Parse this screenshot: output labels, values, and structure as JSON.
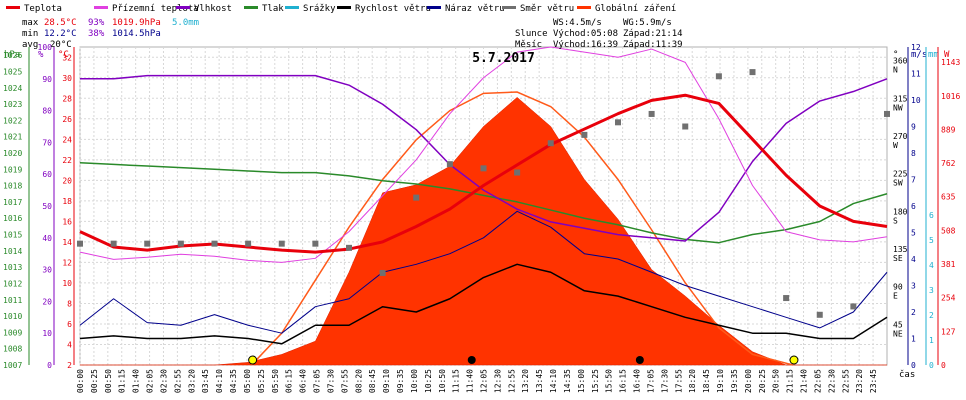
{
  "chart_data": {
    "type": "line",
    "title": "5.7.2017",
    "legend": [
      {
        "label": "Teplota",
        "color": "#e8000b"
      },
      {
        "label": "Přízemní teplota",
        "color": "#e040e0"
      },
      {
        "label": "Vlhkost",
        "color": "#8000c0"
      },
      {
        "label": "Tlak",
        "color": "#2a8a2a"
      },
      {
        "label": "Srážky",
        "color": "#20b0d0"
      },
      {
        "label": "Rychlost větru",
        "color": "#000000"
      },
      {
        "label": "Náraz větru",
        "color": "#00008b"
      },
      {
        "label": "Směr větru",
        "color": "#707070"
      },
      {
        "label": "Globální záření",
        "color": "#ff3300"
      }
    ],
    "stats": {
      "max": {
        "label": "max",
        "temp": "28.5°C",
        "hum": "93%",
        "press": "1019.9hPa",
        "rain": "5.0mm"
      },
      "min": {
        "label": "min",
        "temp": "12.2°C",
        "hum": "38%",
        "press": "1014.5hPa"
      },
      "avg": {
        "label": "avg",
        "temp": "20°C"
      }
    },
    "wind_info": {
      "ws": "WS:4.5m/s",
      "wg": "WG:5.9m/s"
    },
    "sun": {
      "label": "Slunce",
      "rise": "Východ:05:08",
      "set": "Západ:21:14"
    },
    "moon": {
      "label": "Měsíc",
      "rise": "Východ:16:39",
      "set": "Západ:11:39"
    },
    "axis_headers": {
      "hpa": "hPa",
      "pct": "%",
      "degc": "°C",
      "deg": "°",
      "ms": "m/s",
      "mm": "mm",
      "w": "W",
      "time": "čas"
    },
    "hpa_ticks": [
      "1026",
      "1025",
      "1024",
      "1023",
      "1022",
      "1021",
      "1020",
      "1019",
      "1018",
      "1017",
      "1016",
      "1015",
      "1014",
      "1013",
      "1012",
      "1011",
      "1010",
      "1009",
      "1008",
      "1007"
    ],
    "pct_ticks": [
      "100",
      "90",
      "80",
      "70",
      "60",
      "50",
      "40",
      "30",
      "20",
      "10",
      "0"
    ],
    "degc_ticks": [
      "32",
      "30",
      "28",
      "26",
      "24",
      "22",
      "20",
      "18",
      "16",
      "14",
      "12",
      "10",
      "8",
      "6",
      "4",
      "2"
    ],
    "deg_ticks": [
      {
        "v": "360",
        "d": "N"
      },
      {
        "v": "315",
        "d": "NW"
      },
      {
        "v": "270",
        "d": "W"
      },
      {
        "v": "225",
        "d": "SW"
      },
      {
        "v": "180",
        "d": "S"
      },
      {
        "v": "135",
        "d": "SE"
      },
      {
        "v": "90",
        "d": "E"
      },
      {
        "v": "45",
        "d": "NE"
      }
    ],
    "ms_ticks": [
      "12",
      "11",
      "10",
      "9",
      "8",
      "7",
      "6",
      "5",
      "4",
      "3",
      "2",
      "1",
      "0"
    ],
    "rain_ticks": [
      "6",
      "5",
      "4",
      "3",
      "2",
      "1",
      "0"
    ],
    "w_ticks": [
      "1143",
      "1016",
      "889",
      "762",
      "635",
      "508",
      "381",
      "254",
      "127",
      "0"
    ],
    "x_ticks": [
      "00:00",
      "00:25",
      "00:50",
      "01:15",
      "01:40",
      "02:05",
      "02:30",
      "02:55",
      "03:20",
      "03:45",
      "04:10",
      "04:35",
      "05:00",
      "05:25",
      "05:50",
      "06:15",
      "06:40",
      "07:05",
      "07:30",
      "07:55",
      "08:20",
      "08:45",
      "09:10",
      "09:35",
      "10:00",
      "10:25",
      "10:50",
      "11:15",
      "11:40",
      "12:05",
      "12:30",
      "12:55",
      "13:20",
      "13:45",
      "14:10",
      "14:35",
      "15:00",
      "15:25",
      "15:50",
      "16:15",
      "16:40",
      "17:05",
      "17:30",
      "17:55",
      "18:20",
      "18:45",
      "19:10",
      "19:35",
      "20:00",
      "20:25",
      "20:50",
      "21:15",
      "21:40",
      "22:05",
      "22:30",
      "22:55",
      "23:20",
      "23:45"
    ],
    "series": {
      "teplota": [
        [
          0,
          15.0
        ],
        [
          1,
          13.5
        ],
        [
          2,
          13.2
        ],
        [
          3,
          13.6
        ],
        [
          4,
          13.8
        ],
        [
          5,
          13.5
        ],
        [
          6,
          13.2
        ],
        [
          7,
          13.0
        ],
        [
          8,
          13.3
        ],
        [
          9,
          14.0
        ],
        [
          10,
          15.5
        ],
        [
          11,
          17.2
        ],
        [
          12,
          19.5
        ],
        [
          13,
          21.5
        ],
        [
          14,
          23.5
        ],
        [
          15,
          25.0
        ],
        [
          16,
          26.5
        ],
        [
          17,
          27.8
        ],
        [
          18,
          28.3
        ],
        [
          19,
          27.5
        ],
        [
          20,
          24.0
        ],
        [
          21,
          20.5
        ],
        [
          22,
          17.5
        ],
        [
          23,
          16.0
        ],
        [
          24,
          15.5
        ]
      ],
      "prizemni": [
        [
          0,
          13.0
        ],
        [
          1,
          12.3
        ],
        [
          2,
          12.5
        ],
        [
          3,
          12.8
        ],
        [
          4,
          12.6
        ],
        [
          5,
          12.2
        ],
        [
          6,
          12.0
        ],
        [
          7,
          12.4
        ],
        [
          8,
          15.0
        ],
        [
          9,
          18.5
        ],
        [
          10,
          22.0
        ],
        [
          11,
          26.5
        ],
        [
          12,
          30.0
        ],
        [
          13,
          32.5
        ],
        [
          14,
          33.0
        ],
        [
          15,
          32.5
        ],
        [
          16,
          32.0
        ],
        [
          17,
          32.8
        ],
        [
          18,
          31.5
        ],
        [
          19,
          26.0
        ],
        [
          20,
          19.5
        ],
        [
          21,
          15.0
        ],
        [
          22,
          14.2
        ],
        [
          23,
          14.0
        ],
        [
          24,
          14.5
        ]
      ],
      "vlhkost": [
        [
          0,
          90
        ],
        [
          1,
          90
        ],
        [
          2,
          91
        ],
        [
          3,
          91
        ],
        [
          4,
          91
        ],
        [
          5,
          91
        ],
        [
          6,
          91
        ],
        [
          7,
          91
        ],
        [
          8,
          88
        ],
        [
          9,
          82
        ],
        [
          10,
          74
        ],
        [
          11,
          63
        ],
        [
          12,
          55
        ],
        [
          13,
          49
        ],
        [
          14,
          45
        ],
        [
          15,
          43
        ],
        [
          16,
          41
        ],
        [
          17,
          40
        ],
        [
          18,
          39
        ],
        [
          19,
          48
        ],
        [
          20,
          64
        ],
        [
          21,
          76
        ],
        [
          22,
          83
        ],
        [
          23,
          86
        ],
        [
          24,
          90
        ]
      ],
      "tlak": [
        [
          0,
          1019.4
        ],
        [
          1,
          1019.3
        ],
        [
          2,
          1019.2
        ],
        [
          3,
          1019.1
        ],
        [
          4,
          1019.0
        ],
        [
          5,
          1018.9
        ],
        [
          6,
          1018.8
        ],
        [
          7,
          1018.8
        ],
        [
          8,
          1018.6
        ],
        [
          9,
          1018.3
        ],
        [
          10,
          1018.1
        ],
        [
          11,
          1017.8
        ],
        [
          12,
          1017.4
        ],
        [
          13,
          1017.0
        ],
        [
          14,
          1016.5
        ],
        [
          15,
          1016.0
        ],
        [
          16,
          1015.6
        ],
        [
          17,
          1015.1
        ],
        [
          18,
          1014.7
        ],
        [
          19,
          1014.5
        ],
        [
          20,
          1015.0
        ],
        [
          21,
          1015.3
        ],
        [
          22,
          1015.8
        ],
        [
          23,
          1016.9
        ],
        [
          24,
          1017.5
        ]
      ],
      "rychlost": [
        [
          0,
          1.0
        ],
        [
          1,
          1.1
        ],
        [
          2,
          1.0
        ],
        [
          3,
          1.0
        ],
        [
          4,
          1.1
        ],
        [
          5,
          1.0
        ],
        [
          6,
          0.8
        ],
        [
          7,
          1.5
        ],
        [
          8,
          1.5
        ],
        [
          9,
          2.2
        ],
        [
          10,
          2.0
        ],
        [
          11,
          2.5
        ],
        [
          12,
          3.3
        ],
        [
          13,
          3.8
        ],
        [
          14,
          3.5
        ],
        [
          15,
          2.8
        ],
        [
          16,
          2.6
        ],
        [
          17,
          2.2
        ],
        [
          18,
          1.8
        ],
        [
          19,
          1.5
        ],
        [
          20,
          1.2
        ],
        [
          21,
          1.2
        ],
        [
          22,
          1.0
        ],
        [
          23,
          1.0
        ],
        [
          24,
          1.8
        ]
      ],
      "naraz": [
        [
          0,
          1.5
        ],
        [
          1,
          2.5
        ],
        [
          2,
          1.6
        ],
        [
          3,
          1.5
        ],
        [
          4,
          1.9
        ],
        [
          5,
          1.5
        ],
        [
          6,
          1.2
        ],
        [
          7,
          2.2
        ],
        [
          8,
          2.5
        ],
        [
          9,
          3.5
        ],
        [
          10,
          3.8
        ],
        [
          11,
          4.2
        ],
        [
          12,
          4.8
        ],
        [
          13,
          5.8
        ],
        [
          14,
          5.2
        ],
        [
          15,
          4.2
        ],
        [
          16,
          4.0
        ],
        [
          17,
          3.5
        ],
        [
          18,
          3.0
        ],
        [
          19,
          2.6
        ],
        [
          20,
          2.2
        ],
        [
          21,
          1.8
        ],
        [
          22,
          1.4
        ],
        [
          23,
          2.0
        ],
        [
          24,
          3.5
        ]
      ],
      "smer": [
        [
          0,
          145
        ],
        [
          1,
          145
        ],
        [
          2,
          145
        ],
        [
          3,
          145
        ],
        [
          4,
          145
        ],
        [
          5,
          145
        ],
        [
          6,
          145
        ],
        [
          7,
          145
        ],
        [
          8,
          140
        ],
        [
          9,
          110
        ],
        [
          10,
          200
        ],
        [
          11,
          240
        ],
        [
          12,
          235
        ],
        [
          13,
          230
        ],
        [
          14,
          265
        ],
        [
          15,
          275
        ],
        [
          16,
          290
        ],
        [
          17,
          300
        ],
        [
          18,
          285
        ],
        [
          19,
          345
        ],
        [
          20,
          350
        ],
        [
          21,
          80
        ],
        [
          22,
          60
        ],
        [
          23,
          70
        ],
        [
          24,
          300
        ]
      ],
      "zareni": [
        [
          0,
          0
        ],
        [
          1,
          0
        ],
        [
          2,
          0
        ],
        [
          3,
          0
        ],
        [
          4,
          0
        ],
        [
          5,
          10
        ],
        [
          6,
          40
        ],
        [
          7,
          90
        ],
        [
          8,
          350
        ],
        [
          9,
          650
        ],
        [
          10,
          680
        ],
        [
          11,
          750
        ],
        [
          12,
          900
        ],
        [
          13,
          1010
        ],
        [
          14,
          900
        ],
        [
          15,
          700
        ],
        [
          16,
          550
        ],
        [
          17,
          360
        ],
        [
          18,
          260
        ],
        [
          19,
          150
        ],
        [
          20,
          50
        ],
        [
          21,
          0
        ],
        [
          22,
          0
        ],
        [
          23,
          0
        ],
        [
          24,
          0
        ]
      ],
      "teoreticke_zareni": [
        [
          5.1,
          0
        ],
        [
          6,
          120
        ],
        [
          7,
          320
        ],
        [
          8,
          520
        ],
        [
          9,
          700
        ],
        [
          10,
          850
        ],
        [
          11,
          960
        ],
        [
          12,
          1025
        ],
        [
          13,
          1030
        ],
        [
          14,
          975
        ],
        [
          15,
          860
        ],
        [
          16,
          700
        ],
        [
          17,
          510
        ],
        [
          18,
          310
        ],
        [
          19,
          140
        ],
        [
          20,
          40
        ],
        [
          21.2,
          0
        ]
      ]
    },
    "ylim_temp": [
      2,
      33
    ],
    "ylim_hum": [
      0,
      100
    ],
    "ylim_press": [
      1007,
      1026.5
    ],
    "ylim_wind": [
      0,
      12
    ],
    "ylim_dir": [
      0,
      380
    ],
    "ylim_rad": [
      0,
      1200
    ],
    "grid": true
  }
}
